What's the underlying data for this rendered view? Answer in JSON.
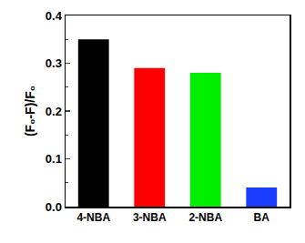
{
  "chart_data": {
    "type": "bar",
    "categories": [
      "4-NBA",
      "3-NBA",
      "2-NBA",
      "BA"
    ],
    "values": [
      0.35,
      0.29,
      0.28,
      0.04
    ],
    "colors": [
      "#000000",
      "#ff0000",
      "#00ee00",
      "#1a3cff"
    ],
    "y_label": "(F₀-F)/F₀",
    "ylim": [
      0,
      0.4
    ],
    "yticks": [
      {
        "value": 0,
        "label": "0.0"
      },
      0.1,
      0.2,
      0.3,
      0.4
    ],
    "grid": false
  }
}
